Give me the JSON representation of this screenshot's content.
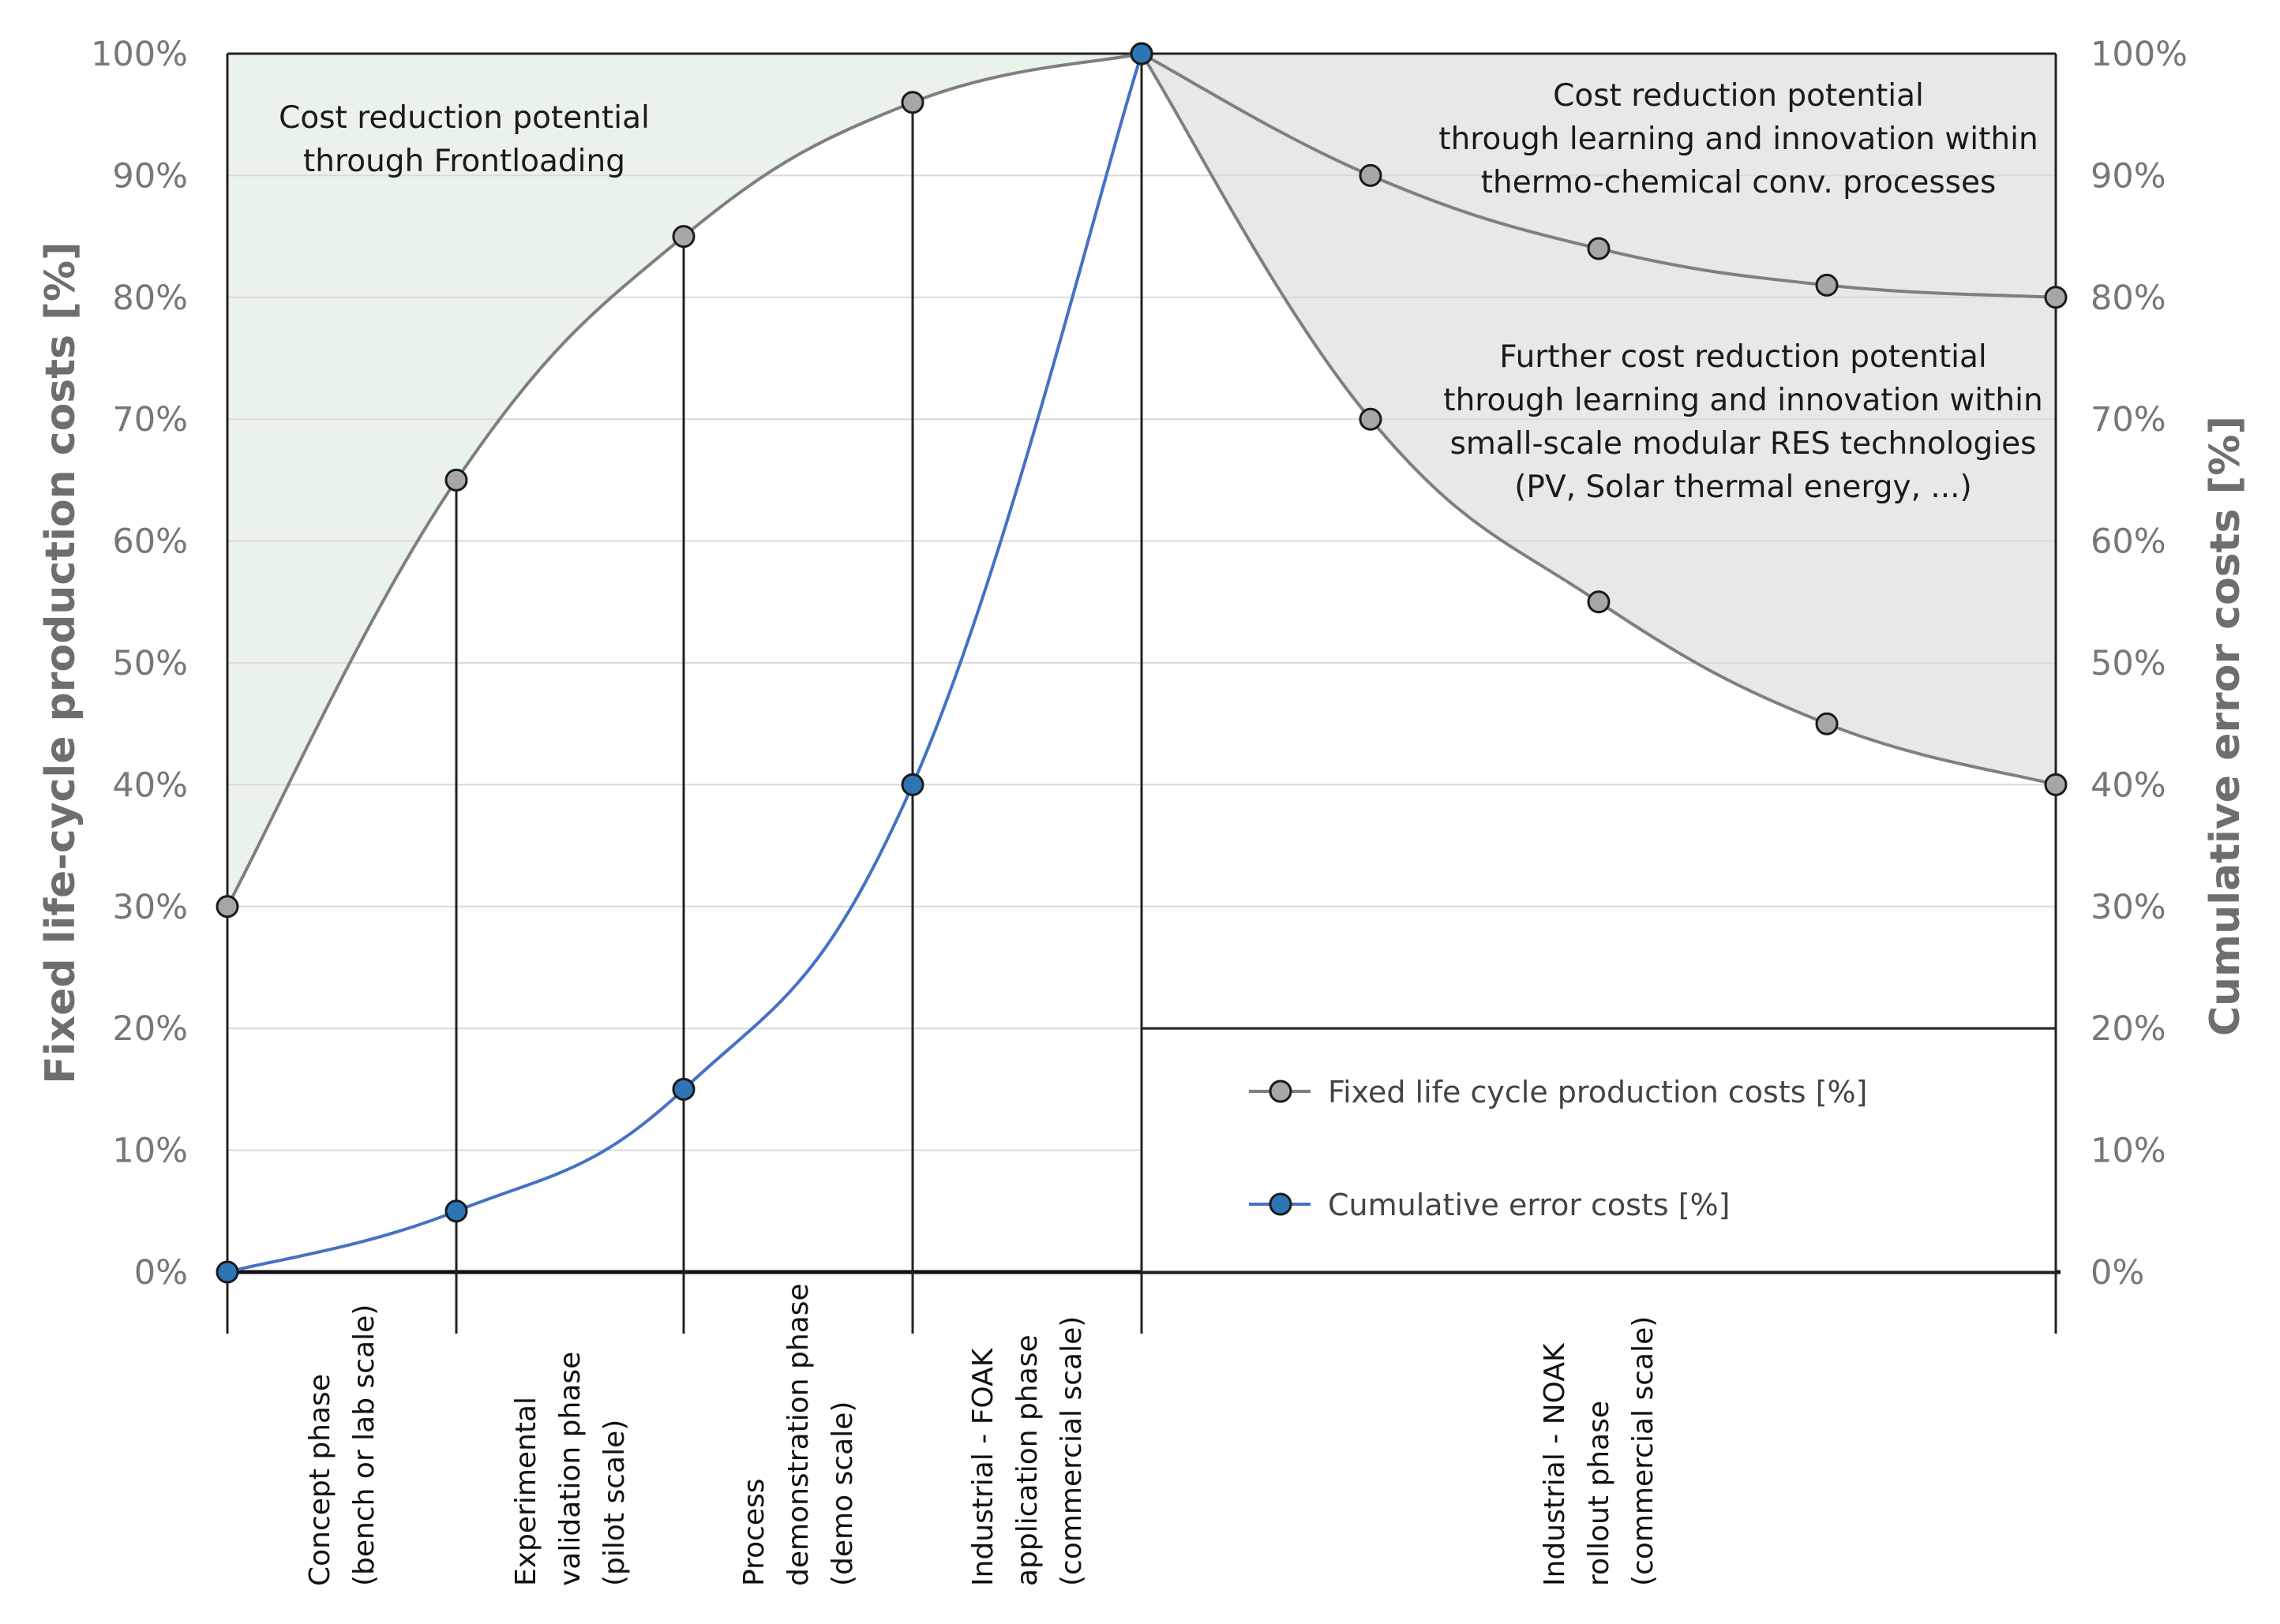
{
  "chart_data": {
    "type": "line",
    "title": "",
    "ylabel_left": "Fixed life-cycle production costs [%]",
    "ylabel_right": "Cumulative error costs [%]",
    "ylim": [
      0,
      100
    ],
    "y_ticks": [
      "0%",
      "10%",
      "20%",
      "30%",
      "40%",
      "50%",
      "60%",
      "70%",
      "80%",
      "90%",
      "100%"
    ],
    "grid": true,
    "x_positions": [
      0,
      1,
      2,
      3,
      4,
      5,
      6,
      7,
      8
    ],
    "phases": [
      {
        "lines": [
          "Concept phase",
          "(bench or lab scale)"
        ],
        "from": 0,
        "to": 1
      },
      {
        "lines": [
          "Experimental",
          "validation phase",
          "(pilot scale)"
        ],
        "from": 1,
        "to": 2
      },
      {
        "lines": [
          "Process",
          "demonstration phase",
          "(demo scale)"
        ],
        "from": 2,
        "to": 3
      },
      {
        "lines": [
          "Industrial - FOAK",
          "application phase",
          "(commercial scale)"
        ],
        "from": 3,
        "to": 4
      },
      {
        "lines": [
          "Industrial - NOAK",
          "rollout phase",
          "(commercial scale)"
        ],
        "from": 4,
        "to": 8
      }
    ],
    "series": [
      {
        "name": "Fixed life cycle production costs [%] (rising)",
        "color": "#7f7f7f",
        "marker": "#a6a6a6",
        "x": [
          0,
          1,
          2,
          3,
          4
        ],
        "values": [
          30,
          65,
          85,
          96,
          100
        ]
      },
      {
        "name": "Fixed life cycle production costs [%] (thermo-chemical)",
        "color": "#7f7f7f",
        "marker": "#a6a6a6",
        "x": [
          4,
          5,
          6,
          7,
          8
        ],
        "values": [
          100,
          90,
          84,
          81,
          80
        ]
      },
      {
        "name": "Fixed life cycle production costs [%] (small-scale modular RES)",
        "color": "#7f7f7f",
        "marker": "#a6a6a6",
        "x": [
          4,
          5,
          6,
          7,
          8
        ],
        "values": [
          100,
          70,
          55,
          45,
          40
        ]
      },
      {
        "name": "Cumulative error costs [%]",
        "color": "#4472c4",
        "marker": "#2e75b6",
        "x": [
          0,
          1,
          2,
          3,
          4
        ],
        "values": [
          0,
          5,
          15,
          40,
          100
        ]
      }
    ],
    "annotations": [
      {
        "lines": [
          "Cost reduction potential",
          "through Frontloading"
        ]
      },
      {
        "lines": [
          "Cost reduction potential",
          "through learning and innovation within",
          "thermo-chemical conv. processes"
        ]
      },
      {
        "lines": [
          "Further cost reduction potential",
          "through learning and innovation within",
          "small-scale modular RES technologies",
          "(PV, Solar thermal energy, ...)"
        ]
      }
    ],
    "legend": {
      "placement": "bottom-right",
      "items": [
        {
          "label": "Fixed life cycle production costs [%]",
          "marker": "#a6a6a6"
        },
        {
          "label": "Cumulative error costs [%]",
          "marker": "#2e75b6"
        }
      ]
    },
    "shaded_regions": [
      {
        "name": "frontloading-potential",
        "color": "#eaf3ea"
      },
      {
        "name": "learning-potential",
        "color": "#e8e8e8"
      }
    ]
  }
}
